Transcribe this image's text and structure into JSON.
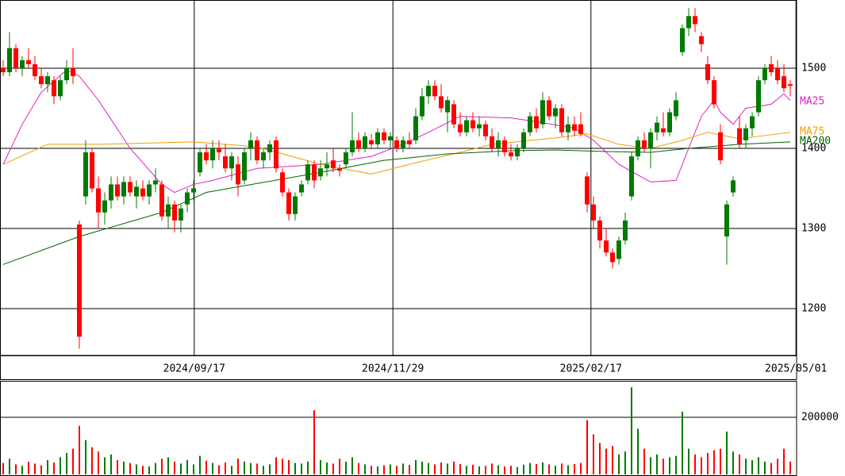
{
  "chart_data": [
    {
      "type": "candlestick",
      "xlim": [
        -0.5,
        125
      ],
      "xticks": [
        {
          "value": 30.1,
          "label": "2024/09/17"
        },
        {
          "value": 61.4,
          "label": "2024/11/29"
        },
        {
          "value": 92.6,
          "label": "2025/02/17"
        },
        {
          "value": 124.9,
          "label": "2025/05/01"
        }
      ],
      "ylim": [
        1141.6,
        1585.1
      ],
      "yticks": [
        1200,
        1300,
        1400,
        1500
      ],
      "grid": true,
      "up_color": "#007a00",
      "down_color": "#ff0000",
      "ohlc": [
        [
          1500,
          1510,
          1490,
          1495
        ],
        [
          1495,
          1545,
          1490,
          1525
        ],
        [
          1525,
          1530,
          1495,
          1500
        ],
        [
          1500,
          1515,
          1490,
          1510
        ],
        [
          1510,
          1525,
          1500,
          1505
        ],
        [
          1505,
          1515,
          1485,
          1490
        ],
        [
          1490,
          1500,
          1475,
          1480
        ],
        [
          1480,
          1495,
          1470,
          1490
        ],
        [
          1485,
          1490,
          1455,
          1465
        ],
        [
          1465,
          1490,
          1460,
          1485
        ],
        [
          1485,
          1510,
          1480,
          1500
        ],
        [
          1500,
          1525,
          1480,
          1490
        ],
        [
          1305,
          1310,
          1150,
          1165
        ],
        [
          1340,
          1410,
          1330,
          1395
        ],
        [
          1395,
          1400,
          1345,
          1350
        ],
        [
          1350,
          1365,
          1300,
          1320
        ],
        [
          1320,
          1345,
          1305,
          1335
        ],
        [
          1335,
          1365,
          1325,
          1355
        ],
        [
          1355,
          1365,
          1335,
          1340
        ],
        [
          1340,
          1365,
          1330,
          1358
        ],
        [
          1358,
          1365,
          1340,
          1345
        ],
        [
          1340,
          1360,
          1325,
          1352
        ],
        [
          1350,
          1360,
          1335,
          1340
        ],
        [
          1340,
          1360,
          1330,
          1355
        ],
        [
          1355,
          1375,
          1345,
          1360
        ],
        [
          1355,
          1360,
          1310,
          1315
        ],
        [
          1315,
          1340,
          1300,
          1330
        ],
        [
          1330,
          1335,
          1295,
          1310
        ],
        [
          1310,
          1330,
          1295,
          1325
        ],
        [
          1330,
          1350,
          1320,
          1345
        ],
        [
          1345,
          1360,
          1335,
          1350
        ],
        [
          1370,
          1400,
          1365,
          1395
        ],
        [
          1395,
          1405,
          1380,
          1385
        ],
        [
          1385,
          1410,
          1375,
          1400
        ],
        [
          1400,
          1410,
          1385,
          1395
        ],
        [
          1390,
          1405,
          1370,
          1375
        ],
        [
          1375,
          1395,
          1360,
          1390
        ],
        [
          1380,
          1390,
          1340,
          1355
        ],
        [
          1360,
          1400,
          1355,
          1395
        ],
        [
          1400,
          1420,
          1385,
          1410
        ],
        [
          1410,
          1415,
          1380,
          1385
        ],
        [
          1385,
          1400,
          1375,
          1395
        ],
        [
          1395,
          1410,
          1385,
          1405
        ],
        [
          1410,
          1415,
          1370,
          1375
        ],
        [
          1370,
          1375,
          1340,
          1345
        ],
        [
          1345,
          1350,
          1310,
          1318
        ],
        [
          1318,
          1345,
          1310,
          1340
        ],
        [
          1345,
          1360,
          1340,
          1355
        ],
        [
          1360,
          1385,
          1355,
          1380
        ],
        [
          1380,
          1385,
          1350,
          1360
        ],
        [
          1365,
          1385,
          1360,
          1375
        ],
        [
          1375,
          1395,
          1365,
          1380
        ],
        [
          1385,
          1400,
          1370,
          1375
        ],
        [
          1375,
          1380,
          1365,
          1372
        ],
        [
          1380,
          1400,
          1375,
          1395
        ],
        [
          1395,
          1445,
          1390,
          1410
        ],
        [
          1410,
          1420,
          1395,
          1400
        ],
        [
          1400,
          1420,
          1395,
          1415
        ],
        [
          1410,
          1418,
          1400,
          1405
        ],
        [
          1405,
          1425,
          1400,
          1420
        ],
        [
          1420,
          1425,
          1405,
          1410
        ],
        [
          1410,
          1420,
          1400,
          1415
        ],
        [
          1410,
          1415,
          1395,
          1400
        ],
        [
          1400,
          1415,
          1395,
          1410
        ],
        [
          1410,
          1420,
          1400,
          1405
        ],
        [
          1410,
          1450,
          1405,
          1440
        ],
        [
          1440,
          1475,
          1435,
          1465
        ],
        [
          1465,
          1485,
          1455,
          1478
        ],
        [
          1478,
          1485,
          1460,
          1465
        ],
        [
          1465,
          1480,
          1445,
          1450
        ],
        [
          1445,
          1465,
          1420,
          1460
        ],
        [
          1455,
          1460,
          1425,
          1430
        ],
        [
          1430,
          1445,
          1415,
          1420
        ],
        [
          1420,
          1440,
          1415,
          1435
        ],
        [
          1435,
          1445,
          1420,
          1425
        ],
        [
          1425,
          1440,
          1415,
          1430
        ],
        [
          1430,
          1435,
          1410,
          1415
        ],
        [
          1415,
          1425,
          1395,
          1400
        ],
        [
          1400,
          1420,
          1390,
          1410
        ],
        [
          1410,
          1415,
          1390,
          1395
        ],
        [
          1395,
          1405,
          1385,
          1390
        ],
        [
          1390,
          1405,
          1385,
          1400
        ],
        [
          1400,
          1425,
          1395,
          1420
        ],
        [
          1420,
          1445,
          1415,
          1440
        ],
        [
          1440,
          1450,
          1420,
          1425
        ],
        [
          1430,
          1470,
          1425,
          1460
        ],
        [
          1460,
          1465,
          1435,
          1440
        ],
        [
          1440,
          1455,
          1425,
          1450
        ],
        [
          1450,
          1455,
          1415,
          1420
        ],
        [
          1420,
          1440,
          1410,
          1430
        ],
        [
          1430,
          1440,
          1415,
          1422
        ],
        [
          1430,
          1445,
          1415,
          1418
        ],
        [
          1365,
          1370,
          1320,
          1330
        ],
        [
          1330,
          1340,
          1300,
          1310
        ],
        [
          1310,
          1315,
          1275,
          1285
        ],
        [
          1285,
          1300,
          1265,
          1270
        ],
        [
          1270,
          1275,
          1250,
          1258
        ],
        [
          1262,
          1290,
          1255,
          1285
        ],
        [
          1285,
          1320,
          1280,
          1310
        ],
        [
          1340,
          1395,
          1335,
          1390
        ],
        [
          1390,
          1415,
          1385,
          1410
        ],
        [
          1410,
          1420,
          1395,
          1400
        ],
        [
          1400,
          1425,
          1375,
          1420
        ],
        [
          1420,
          1440,
          1410,
          1432
        ],
        [
          1425,
          1445,
          1415,
          1420
        ],
        [
          1420,
          1450,
          1415,
          1445
        ],
        [
          1440,
          1470,
          1435,
          1460
        ],
        [
          1520,
          1555,
          1515,
          1550
        ],
        [
          1550,
          1575,
          1540,
          1565
        ],
        [
          1565,
          1575,
          1545,
          1555
        ],
        [
          1540,
          1545,
          1520,
          1530
        ],
        [
          1505,
          1515,
          1480,
          1485
        ],
        [
          1485,
          1490,
          1450,
          1455
        ],
        [
          1420,
          1430,
          1380,
          1385
        ],
        [
          1290,
          1335,
          1255,
          1330
        ],
        [
          1345,
          1365,
          1340,
          1360
        ],
        [
          1425,
          1440,
          1400,
          1405
        ],
        [
          1410,
          1430,
          1400,
          1425
        ],
        [
          1425,
          1445,
          1415,
          1440
        ],
        [
          1445,
          1490,
          1440,
          1485
        ],
        [
          1485,
          1505,
          1480,
          1500
        ],
        [
          1505,
          1515,
          1490,
          1495
        ],
        [
          1500,
          1510,
          1480,
          1485
        ],
        [
          1490,
          1505,
          1470,
          1475
        ],
        [
          1480,
          1485,
          1465,
          1478
        ]
      ],
      "series": [
        {
          "name": "MA25",
          "color": "#e020c0",
          "x": [
            0,
            3,
            6,
            10,
            12,
            15,
            20,
            25,
            27,
            30,
            33,
            40,
            50,
            58,
            63,
            67,
            72,
            80,
            85,
            90,
            93,
            97,
            102,
            106,
            108,
            110,
            112,
            113,
            115,
            117,
            121,
            123,
            124
          ],
          "values": [
            1380,
            1430,
            1470,
            1498,
            1490,
            1460,
            1400,
            1355,
            1345,
            1355,
            1360,
            1375,
            1380,
            1390,
            1405,
            1420,
            1440,
            1438,
            1432,
            1425,
            1410,
            1380,
            1358,
            1360,
            1400,
            1440,
            1460,
            1445,
            1430,
            1450,
            1455,
            1468,
            1460
          ]
        },
        {
          "name": "MA75",
          "color": "#f0a000",
          "x": [
            0,
            7,
            15,
            30,
            40,
            50,
            58,
            65,
            72,
            77,
            87,
            92,
            97,
            102,
            107,
            111,
            116,
            120,
            124
          ],
          "values": [
            1380,
            1405,
            1405,
            1408,
            1402,
            1380,
            1368,
            1382,
            1395,
            1405,
            1413,
            1418,
            1405,
            1400,
            1410,
            1420,
            1412,
            1416,
            1420
          ]
        },
        {
          "name": "MA200",
          "color": "#006400",
          "x": [
            0,
            12,
            25,
            32,
            50,
            60,
            70,
            80,
            87,
            95,
            102,
            108,
            116,
            124
          ],
          "values": [
            1255,
            1290,
            1320,
            1345,
            1370,
            1385,
            1393,
            1397,
            1398,
            1396,
            1395,
            1400,
            1405,
            1408
          ]
        }
      ]
    },
    {
      "type": "bar",
      "ylim": [
        0,
        327800
      ],
      "yticks": [
        200000
      ],
      "grid": true,
      "values": [
        40000,
        55000,
        35000,
        30000,
        45000,
        38000,
        32000,
        50000,
        42000,
        60000,
        75000,
        90000,
        170000,
        120000,
        95000,
        80000,
        60000,
        70000,
        50000,
        45000,
        40000,
        35000,
        30000,
        28000,
        40000,
        55000,
        60000,
        45000,
        38000,
        50000,
        35000,
        65000,
        48000,
        40000,
        32000,
        42000,
        30000,
        55000,
        45000,
        40000,
        38000,
        30000,
        35000,
        60000,
        55000,
        50000,
        40000,
        38000,
        45000,
        225000,
        50000,
        42000,
        38000,
        55000,
        45000,
        60000,
        40000,
        35000,
        30000,
        28000,
        32000,
        35000,
        30000,
        38000,
        33000,
        50000,
        45000,
        40000,
        35000,
        42000,
        38000,
        45000,
        36000,
        30000,
        34000,
        28000,
        30000,
        38000,
        32000,
        28000,
        30000,
        26000,
        34000,
        40000,
        36000,
        42000,
        35000,
        30000,
        38000,
        32000,
        36000,
        40000,
        190000,
        140000,
        110000,
        90000,
        100000,
        70000,
        80000,
        305000,
        160000,
        90000,
        60000,
        70000,
        55000,
        60000,
        65000,
        220000,
        90000,
        70000,
        60000,
        75000,
        85000,
        90000,
        150000,
        80000,
        70000,
        55000,
        50000,
        60000,
        45000,
        40000,
        55000,
        90000,
        45000
      ]
    }
  ]
}
